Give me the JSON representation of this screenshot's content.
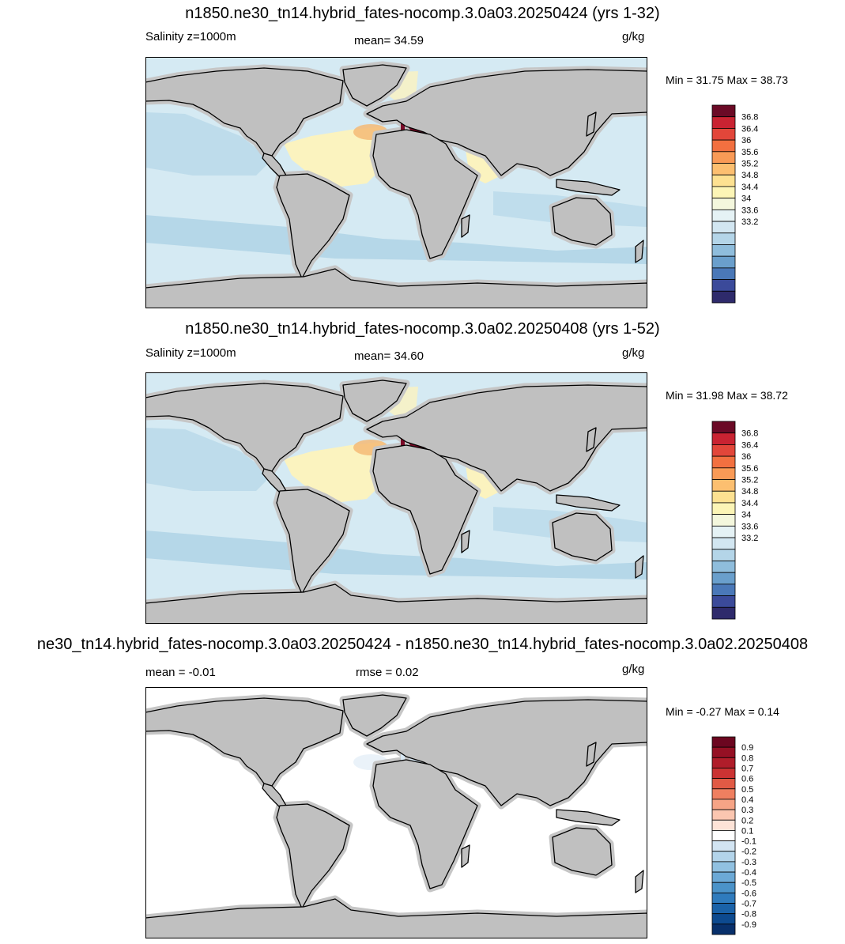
{
  "panels": [
    {
      "title": "n1850.ne30_tn14.hybrid_fates-nocomp.3.0a03.20250424 (yrs 1-32)",
      "left_label": "Salinity z=1000m",
      "center_label": "mean=  34.59",
      "units": "g/kg",
      "minmax": "Min =  31.75 Max =  38.73",
      "colorbar": {
        "labels": [
          "36.8",
          "36.4",
          "36",
          "35.6",
          "35.2",
          "34.8",
          "34.4",
          "34",
          "33.6",
          "33.2"
        ],
        "colors": [
          "#2e2a6b",
          "#3b4a9a",
          "#4a78b8",
          "#6a9fcc",
          "#8fbddc",
          "#b4d5e8",
          "#d2e6f1",
          "#e5f2f5",
          "#f4f7dd",
          "#fcf5b6",
          "#fde191",
          "#fcbf70",
          "#f99a56",
          "#f27040",
          "#e2463a",
          "#c92332",
          "#6b0a26"
        ]
      },
      "regions": {
        "ocean": "#d5eaf3",
        "deep": "#b5d7e8",
        "warm": "#fbf3bf",
        "hot": "#f5ba76",
        "peak": "#7a0a28",
        "land": "#c0c0c0"
      }
    },
    {
      "title": "n1850.ne30_tn14.hybrid_fates-nocomp.3.0a02.20250408 (yrs 1-52)",
      "left_label": "Salinity z=1000m",
      "center_label": "mean=  34.60",
      "units": "g/kg",
      "minmax": "Min =  31.98 Max =  38.72",
      "colorbar": {
        "labels": [
          "36.8",
          "36.4",
          "36",
          "35.6",
          "35.2",
          "34.8",
          "34.4",
          "34",
          "33.6",
          "33.2"
        ],
        "colors": [
          "#2e2a6b",
          "#3b4a9a",
          "#4a78b8",
          "#6a9fcc",
          "#8fbddc",
          "#b4d5e8",
          "#d2e6f1",
          "#e5f2f5",
          "#f4f7dd",
          "#fcf5b6",
          "#fde191",
          "#fcbf70",
          "#f99a56",
          "#f27040",
          "#e2463a",
          "#c92332",
          "#6b0a26"
        ]
      },
      "regions": {
        "ocean": "#d5eaf3",
        "deep": "#b5d7e8",
        "warm": "#fbf3bf",
        "hot": "#f5ba76",
        "peak": "#7a0a28",
        "land": "#c0c0c0"
      }
    },
    {
      "title": "ne30_tn14.hybrid_fates-nocomp.3.0a03.20250424 - n1850.ne30_tn14.hybrid_fates-nocomp.3.0a02.20250408",
      "left_label": "mean =  -0.01",
      "center_label": "rmse =   0.02",
      "units": "g/kg",
      "minmax": "Min =  -0.27 Max =   0.14",
      "colorbar": {
        "labels": [
          "0.9",
          "0.8",
          "0.7",
          "0.6",
          "0.5",
          "0.4",
          "0.3",
          "0.2",
          "0.1",
          "-0.1",
          "-0.2",
          "-0.3",
          "-0.4",
          "-0.5",
          "-0.6",
          "-0.7",
          "-0.8",
          "-0.9"
        ],
        "colors": [
          "#08306b",
          "#0d4a8f",
          "#1a62a8",
          "#2f7bbd",
          "#4b93c9",
          "#6ca9d6",
          "#91c1e1",
          "#b3d4ea",
          "#d2e4f2",
          "#ffffff",
          "#fde3d7",
          "#fbc6b0",
          "#f6a486",
          "#ef7f60",
          "#e15a45",
          "#cb3333",
          "#b01d2a",
          "#951024",
          "#6c0620"
        ]
      },
      "regions": {
        "ocean": "#ffffff",
        "deep": "#ffffff",
        "warm": "#ffffff",
        "hot": "#e6f0f8",
        "peak": "#d8e8f4",
        "land": "#c0c0c0"
      }
    }
  ]
}
